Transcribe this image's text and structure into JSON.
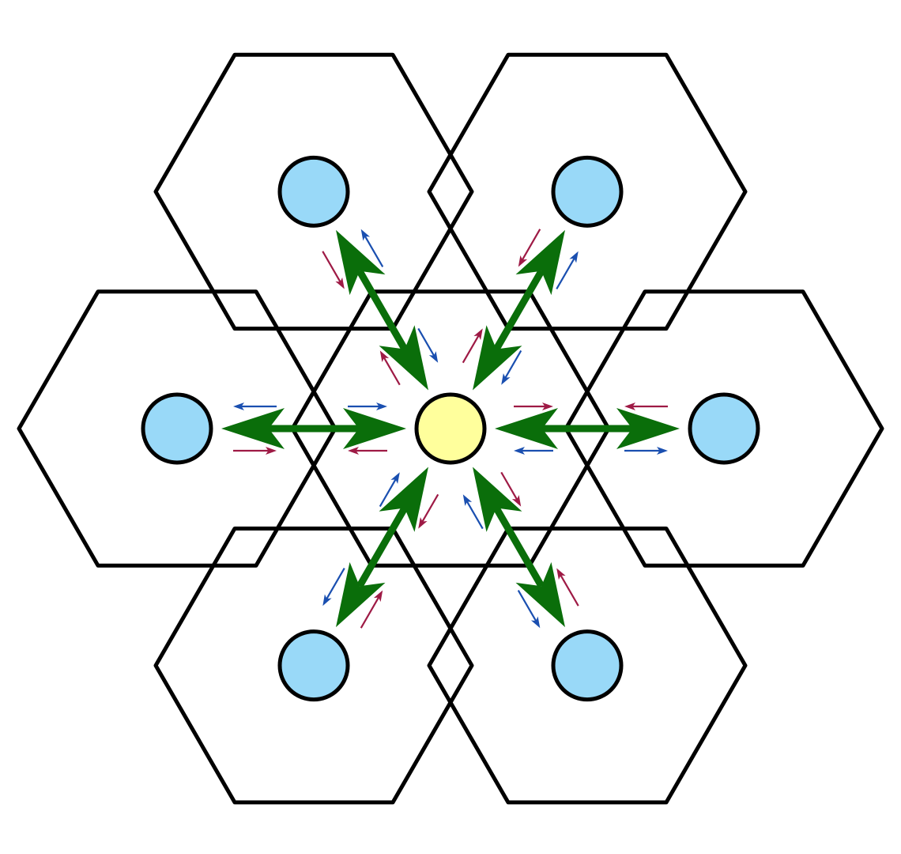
{
  "diagram": {
    "type": "hexagonal-cell-layout",
    "cell_count": 7,
    "center_node": {
      "role": "center",
      "fill": "#ffff9c"
    },
    "neighbor_nodes": [
      {
        "position": "top-left",
        "fill": "#99d9f8"
      },
      {
        "position": "top-right",
        "fill": "#99d9f8"
      },
      {
        "position": "left",
        "fill": "#99d9f8"
      },
      {
        "position": "right",
        "fill": "#99d9f8"
      },
      {
        "position": "bottom-left",
        "fill": "#99d9f8"
      },
      {
        "position": "bottom-right",
        "fill": "#99d9f8"
      }
    ],
    "links": [
      {
        "to": "top-left",
        "bidirectional": true
      },
      {
        "to": "top-right",
        "bidirectional": true
      },
      {
        "to": "left",
        "bidirectional": true
      },
      {
        "to": "right",
        "bidirectional": true
      },
      {
        "to": "bottom-left",
        "bidirectional": true
      },
      {
        "to": "bottom-right",
        "bidirectional": true
      }
    ],
    "colors": {
      "hexagon_stroke": "#000000",
      "link_arrow": "#0a6e0a",
      "small_arrow_red": "#9e1a45",
      "small_arrow_blue": "#1a4fb0",
      "neighbor_fill": "#99d9f8",
      "center_fill": "#ffff9c"
    }
  }
}
